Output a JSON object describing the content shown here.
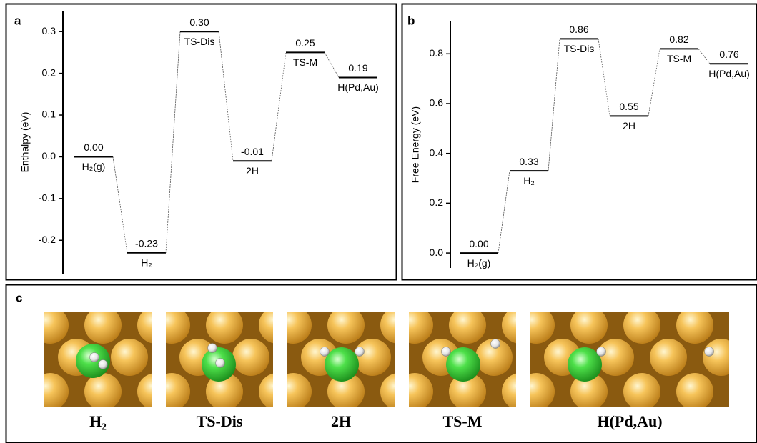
{
  "chart_data": [
    {
      "type": "energy-diagram",
      "panel_label": "a",
      "y_label": "Enthalpy (eV)",
      "categories": [
        "H₂(g)",
        "H₂",
        "TS-Dis",
        "2H",
        "TS-M",
        "H(Pd,Au)"
      ],
      "values": [
        0,
        -0.23,
        0.3,
        -0.01,
        0.25,
        0.19
      ],
      "value_labels": [
        "0.00",
        "-0.23",
        "0.30",
        "-0.01",
        "0.25",
        "0.19"
      ],
      "color": "#000000",
      "ylim": [
        -0.28,
        0.35
      ],
      "yticks": [
        -0.2,
        -0.1,
        {
          "value": 0,
          "label": "0.0"
        },
        0.1,
        0.2,
        0.3
      ]
    },
    {
      "type": "energy-diagram",
      "panel_label": "b",
      "y_label": "Free Energy (eV)",
      "categories": [
        "H₂(g)",
        "H₂",
        "TS-Dis",
        "2H",
        "TS-M",
        "H(Pd,Au)"
      ],
      "values": [
        0,
        0.33,
        0.86,
        0.55,
        0.82,
        0.76
      ],
      "value_labels": [
        "0.00",
        "0.33",
        "0.86",
        "0.55",
        "0.82",
        "0.76"
      ],
      "color": "#000000",
      "ylim": [
        -0.06,
        0.93
      ],
      "yticks": [
        {
          "value": 0,
          "label": "0.0"
        },
        0.2,
        0.4,
        0.6,
        0.8
      ]
    }
  ],
  "structures": {
    "panel_label": "c",
    "captions": [
      "H₂",
      "TS-Dis",
      "2H",
      "TS-M",
      "H(Pd,Au)"
    ]
  }
}
